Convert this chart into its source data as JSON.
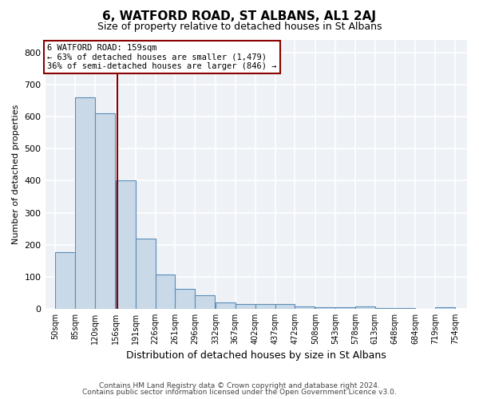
{
  "title": "6, WATFORD ROAD, ST ALBANS, AL1 2AJ",
  "subtitle": "Size of property relative to detached houses in St Albans",
  "xlabel": "Distribution of detached houses by size in St Albans",
  "ylabel": "Number of detached properties",
  "footer1": "Contains HM Land Registry data © Crown copyright and database right 2024.",
  "footer2": "Contains public sector information licensed under the Open Government Licence v3.0.",
  "annotation_line1": "6 WATFORD ROAD: 159sqm",
  "annotation_line2": "← 63% of detached houses are smaller (1,479)",
  "annotation_line3": "36% of semi-detached houses are larger (846) →",
  "bar_color": "#c9d9e8",
  "bar_edge_color": "#5b8db8",
  "bar_left_edges": [
    50,
    85,
    120,
    156,
    191,
    226,
    261,
    296,
    332,
    367,
    402,
    437,
    472,
    508,
    543,
    578,
    613,
    648,
    684,
    719
  ],
  "bar_widths": [
    35,
    35,
    35,
    35,
    35,
    35,
    35,
    35,
    35,
    35,
    35,
    35,
    35,
    35,
    35,
    35,
    35,
    35,
    35,
    35
  ],
  "bar_heights": [
    178,
    660,
    610,
    400,
    218,
    108,
    62,
    42,
    20,
    15,
    14,
    15,
    8,
    5,
    5,
    7,
    3,
    2,
    1,
    6
  ],
  "xtick_labels": [
    "50sqm",
    "85sqm",
    "120sqm",
    "156sqm",
    "191sqm",
    "226sqm",
    "261sqm",
    "296sqm",
    "332sqm",
    "367sqm",
    "402sqm",
    "437sqm",
    "472sqm",
    "508sqm",
    "543sqm",
    "578sqm",
    "613sqm",
    "648sqm",
    "684sqm",
    "719sqm",
    "754sqm"
  ],
  "xtick_positions": [
    50,
    85,
    120,
    156,
    191,
    226,
    261,
    296,
    332,
    367,
    402,
    437,
    472,
    508,
    543,
    578,
    613,
    648,
    684,
    719,
    754
  ],
  "property_size": 159,
  "vline_color": "#8b0000",
  "annotation_box_color": "#8b0000",
  "ylim": [
    0,
    840
  ],
  "xlim": [
    32,
    775
  ],
  "background_color": "#eef2f7",
  "grid_color": "#ffffff",
  "yticks": [
    0,
    100,
    200,
    300,
    400,
    500,
    600,
    700,
    800
  ]
}
